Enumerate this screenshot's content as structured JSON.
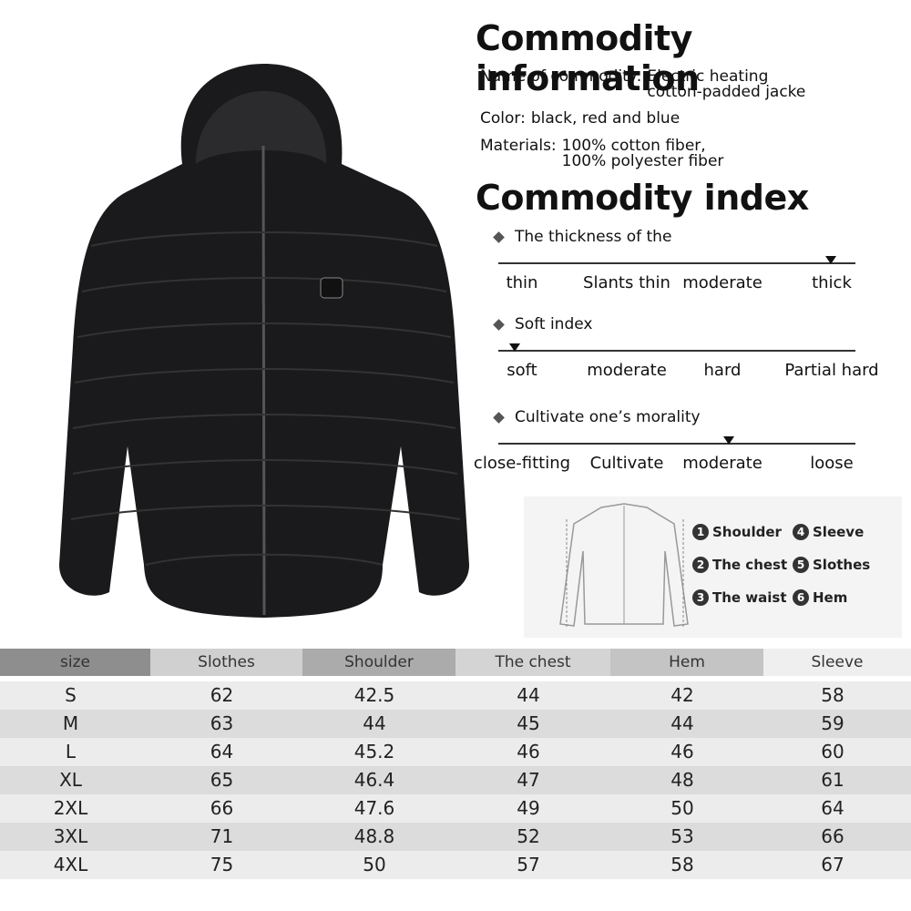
{
  "info": {
    "title": "Commodity information",
    "lines": [
      {
        "label": "Name of commodity:",
        "text": [
          "Electric heating",
          "cotton-padded jacke"
        ]
      },
      {
        "label": "Color:",
        "text": [
          "black, red and blue"
        ]
      },
      {
        "label": "Materials:",
        "text": [
          "100% cotton fiber,",
          "100% polyester fiber"
        ]
      }
    ]
  },
  "index": {
    "title": "Commodity index",
    "scales": [
      {
        "name": "The thickness of the",
        "options": [
          "thin",
          "Slants thin",
          "moderate",
          "thick"
        ]
      },
      {
        "name": "Soft index",
        "options": [
          "soft",
          "moderate",
          "hard",
          "Partial hard"
        ]
      },
      {
        "name": "Cultivate one’s morality",
        "options": [
          "close-fitting",
          "Cultivate",
          "moderate",
          "loose"
        ]
      }
    ]
  },
  "diagram": {
    "legend": [
      {
        "num": "1",
        "label": "Shoulder"
      },
      {
        "num": "4",
        "label": "Sleeve"
      },
      {
        "num": "2",
        "label": "The chest"
      },
      {
        "num": "5",
        "label": "Slothes"
      },
      {
        "num": "3",
        "label": "The waist"
      },
      {
        "num": "6",
        "label": "Hem"
      }
    ]
  },
  "table": {
    "header": [
      "size",
      "Slothes",
      "Shoulder",
      "The chest",
      "Hem",
      "Sleeve"
    ],
    "rows": [
      [
        "S",
        "62",
        "42.5",
        "44",
        "42",
        "58"
      ],
      [
        "M",
        "63",
        "44",
        "45",
        "44",
        "59"
      ],
      [
        "L",
        "64",
        "45.2",
        "46",
        "46",
        "60"
      ],
      [
        "XL",
        "65",
        "46.4",
        "47",
        "48",
        "61"
      ],
      [
        "2XL",
        "66",
        "47.6",
        "49",
        "50",
        "64"
      ],
      [
        "3XL",
        "71",
        "48.8",
        "52",
        "53",
        "66"
      ],
      [
        "4XL",
        "75",
        "50",
        "57",
        "58",
        "67"
      ]
    ]
  }
}
